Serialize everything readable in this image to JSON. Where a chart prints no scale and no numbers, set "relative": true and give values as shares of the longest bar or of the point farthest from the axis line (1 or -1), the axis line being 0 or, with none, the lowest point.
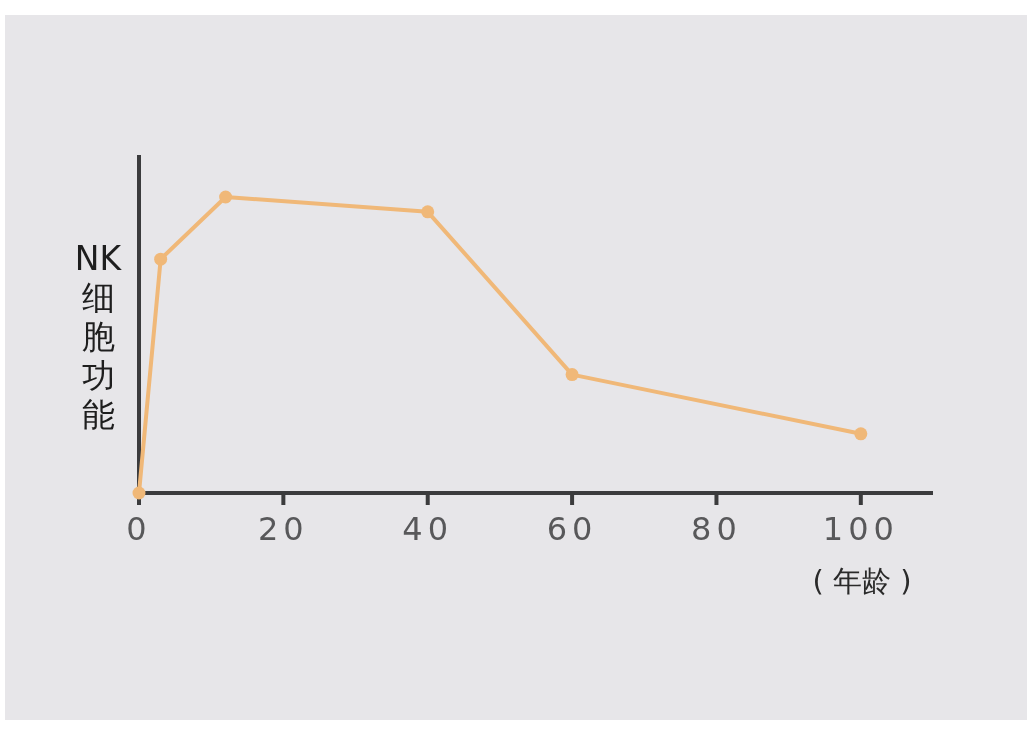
{
  "chart_data": {
    "type": "line",
    "x": [
      0,
      3,
      12,
      40,
      60,
      100
    ],
    "values": [
      0,
      0.79,
      1,
      0.95,
      0.4,
      0.2
    ],
    "relative": true,
    "color": "#f0b878",
    "marker": "circle",
    "line_style": "solid",
    "xlim": [
      0,
      110
    ],
    "xticks": [
      0,
      20,
      40,
      60,
      80,
      100
    ],
    "xlabel": "( 年龄 )",
    "ylabel": "NK细胞功能"
  }
}
